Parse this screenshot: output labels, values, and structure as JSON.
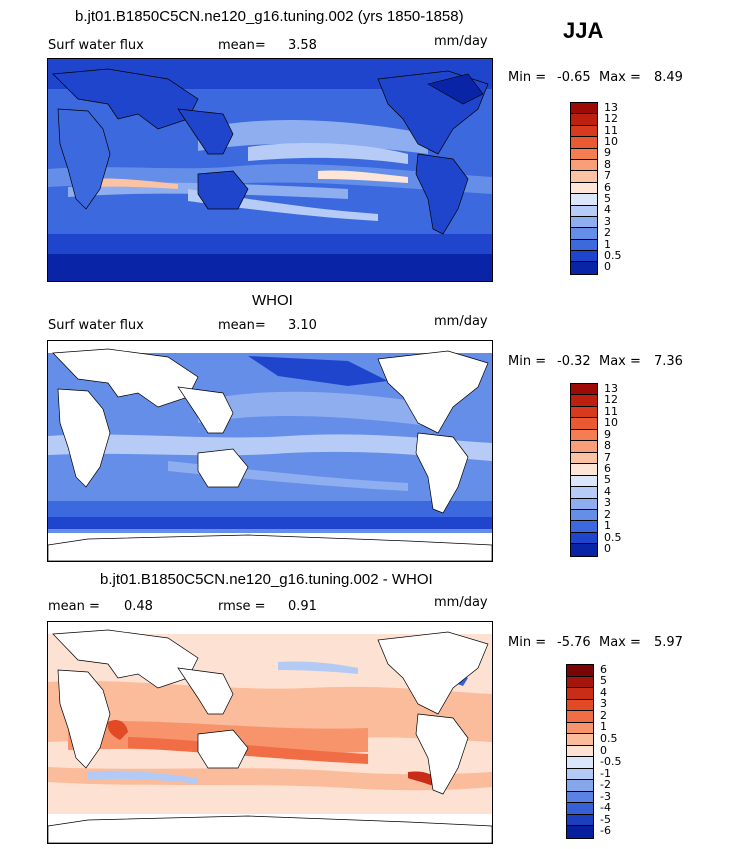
{
  "season": "JJA",
  "units": "mm/day",
  "panels": [
    {
      "title": "b.jt01.B1850C5CN.ne120_g16.tuning.002 (yrs 1850-1858)",
      "left_label": "Surf water flux",
      "stat_label": "mean=",
      "stat_value": "3.58",
      "extra_label": "",
      "extra_value": "",
      "min_label": "Min =",
      "min_value": "-0.65",
      "max_label": "Max =",
      "max_value": "8.49",
      "levels": [
        "13",
        "12",
        "11",
        "10",
        "9",
        "8",
        "7",
        "6",
        "5",
        "4",
        "3",
        "2",
        "1",
        "0.5",
        "0"
      ],
      "colors": [
        "#9c0b06",
        "#be2010",
        "#d83a1e",
        "#ea5a32",
        "#f47d52",
        "#f89e78",
        "#fbc3a4",
        "#fde6d8",
        "#dbe6fa",
        "#b6ccf6",
        "#8eaef0",
        "#658ee8",
        "#3d69de",
        "#1f45cc",
        "#0a24a8"
      ]
    },
    {
      "title": "WHOI",
      "left_label": "Surf water flux",
      "stat_label": "mean=",
      "stat_value": "3.10",
      "extra_label": "",
      "extra_value": "",
      "min_label": "Min =",
      "min_value": "-0.32",
      "max_label": "Max =",
      "max_value": "7.36",
      "levels": [
        "13",
        "12",
        "11",
        "10",
        "9",
        "8",
        "7",
        "6",
        "5",
        "4",
        "3",
        "2",
        "1",
        "0.5",
        "0"
      ],
      "colors": [
        "#9c0b06",
        "#be2010",
        "#d83a1e",
        "#ea5a32",
        "#f47d52",
        "#f89e78",
        "#fbc3a4",
        "#fde6d8",
        "#dbe6fa",
        "#b6ccf6",
        "#8eaef0",
        "#658ee8",
        "#3d69de",
        "#1f45cc",
        "#0a24a8"
      ]
    },
    {
      "title": "b.jt01.B1850C5CN.ne120_g16.tuning.002 - WHOI",
      "left_label": "mean =",
      "stat_label": "",
      "stat_value": "0.48",
      "extra_label": "rmse =",
      "extra_value": "0.91",
      "min_label": "Min =",
      "min_value": "-5.76",
      "max_label": "Max =",
      "max_value": "5.97",
      "levels": [
        "6",
        "5",
        "4",
        "3",
        "2",
        "1",
        "0.5",
        "0",
        "-0.5",
        "-1",
        "-2",
        "-3",
        "-4",
        "-5",
        "-6"
      ],
      "colors": [
        "#7a0506",
        "#a5150d",
        "#c92c17",
        "#e24a26",
        "#f06d45",
        "#f7946c",
        "#fbbc9b",
        "#fde1d2",
        "#dbe6fa",
        "#b3caf4",
        "#86a6ec",
        "#5b82e2",
        "#3560d6",
        "#1c3fbf",
        "#071f9c"
      ]
    }
  ]
}
